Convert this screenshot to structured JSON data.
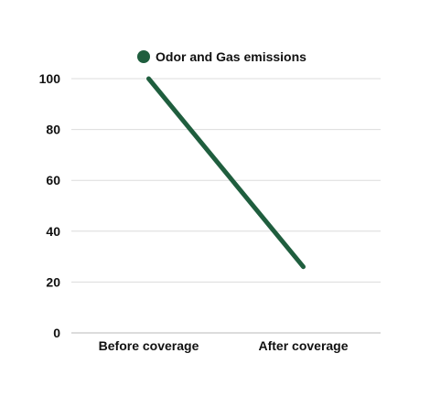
{
  "chart_data": {
    "type": "line",
    "categories": [
      "Before coverage",
      "After coverage"
    ],
    "series": [
      {
        "name": "Odor and Gas emissions",
        "values": [
          100,
          26
        ],
        "color": "#1f5e3e"
      }
    ],
    "title": "",
    "xlabel": "",
    "ylabel": "",
    "ylim": [
      0,
      100
    ],
    "yticks": [
      0,
      20,
      40,
      60,
      80,
      100
    ],
    "grid": true,
    "legend": "top-center"
  }
}
